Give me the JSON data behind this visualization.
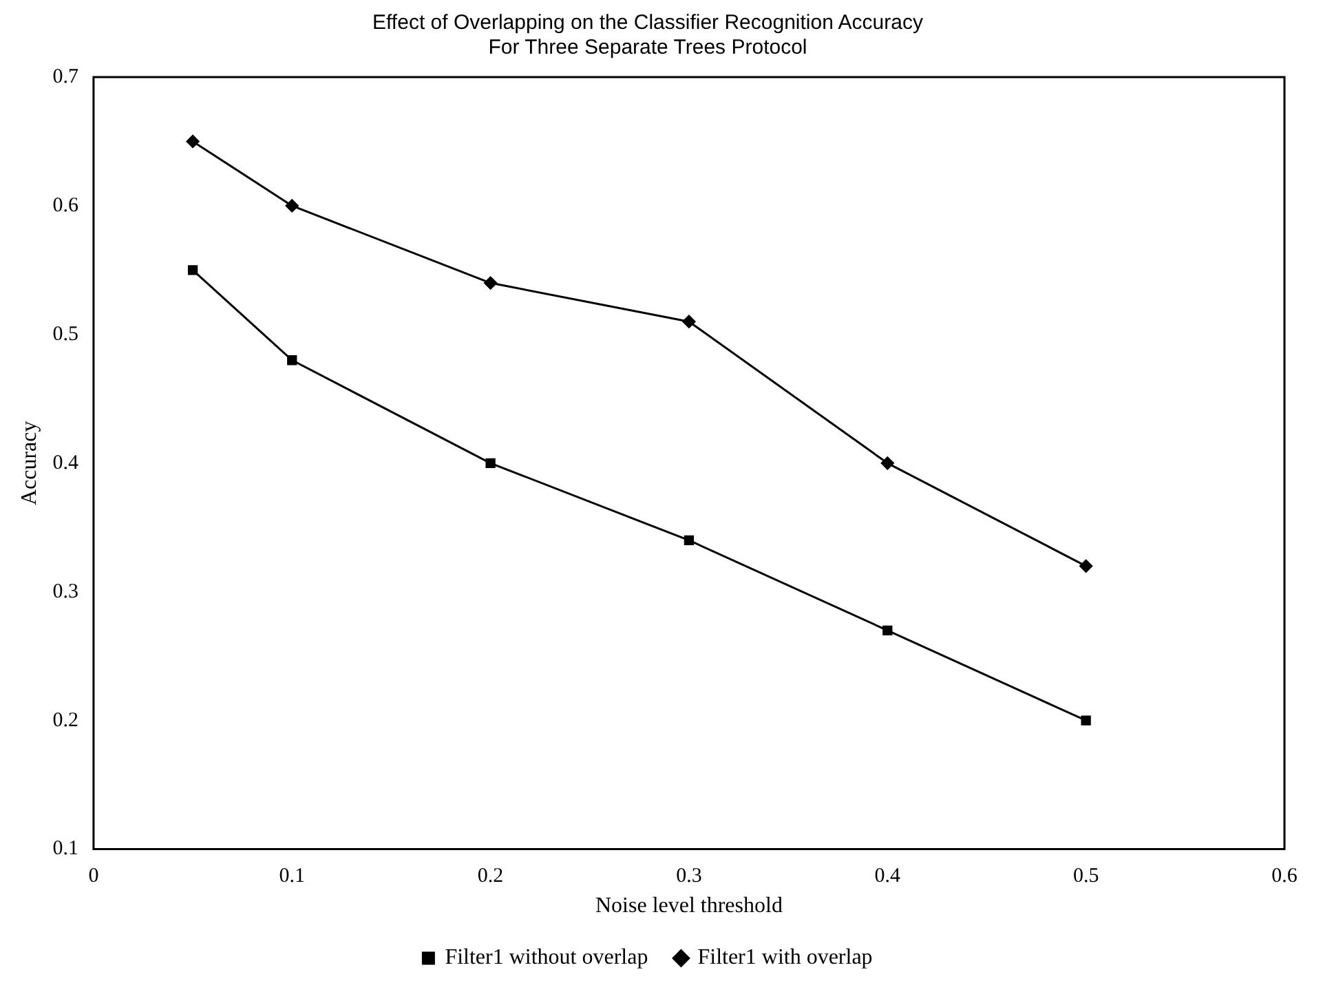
{
  "chart_data": {
    "type": "line",
    "title": [
      "Effect of Overlapping on the Classifier Recognition Accuracy",
      "For Three Separate Trees Protocol"
    ],
    "xlabel": "Noise level threshold",
    "ylabel": "Accuracy",
    "x": [
      0.05,
      0.1,
      0.2,
      0.3,
      0.4,
      0.5
    ],
    "series": [
      {
        "name": "Filter1 without overlap",
        "color": "#000000",
        "marker": "square",
        "values": [
          0.55,
          0.48,
          0.4,
          0.34,
          0.27,
          0.2
        ]
      },
      {
        "name": "Filter1 with overlap",
        "color": "#000000",
        "marker": "diamond",
        "values": [
          0.65,
          0.6,
          0.54,
          0.51,
          0.4,
          0.32
        ]
      }
    ],
    "xlim": [
      0,
      0.6
    ],
    "xticks": [
      0,
      0.1,
      0.2,
      0.3,
      0.4,
      0.5,
      0.6
    ],
    "ylim": [
      0.1,
      0.7
    ],
    "yticks": [
      0.1,
      0.2,
      0.3,
      0.4,
      0.5,
      0.6,
      0.7
    ],
    "grid": false,
    "legend": "bottom",
    "line_style": "solid"
  }
}
